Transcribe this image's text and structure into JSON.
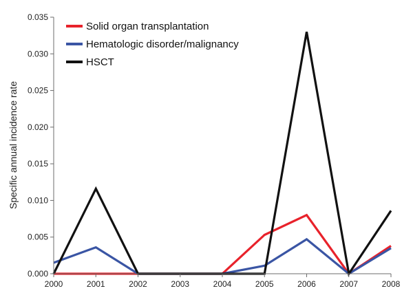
{
  "chart_data": {
    "type": "line",
    "title": "",
    "xlabel": "",
    "ylabel": "Specific annual incidence rate",
    "x": [
      "2000",
      "2001",
      "2002",
      "2003",
      "2004",
      "2005",
      "2006",
      "2007",
      "2008"
    ],
    "ylim": [
      0,
      0.035
    ],
    "yticks": [
      "0.000",
      "0.005",
      "0.010",
      "0.015",
      "0.020",
      "0.025",
      "0.030",
      "0.035"
    ],
    "grid": false,
    "legend_position": "top-left",
    "series": [
      {
        "name": "Solid organ transplantation",
        "color": "#e8222b",
        "values": [
          0,
          0,
          0,
          null,
          0,
          0.0053,
          0.008,
          0,
          0.0038
        ]
      },
      {
        "name": "Hematologic disorder/malignancy",
        "color": "#3a55a4",
        "values": [
          0.0015,
          0.0036,
          0,
          null,
          0,
          0.0011,
          0.0047,
          0,
          0.0035
        ]
      },
      {
        "name": "HSCT",
        "color": "#111111",
        "values": [
          0,
          0.0116,
          0,
          null,
          0,
          0,
          0.033,
          0,
          0.0086
        ]
      }
    ]
  }
}
